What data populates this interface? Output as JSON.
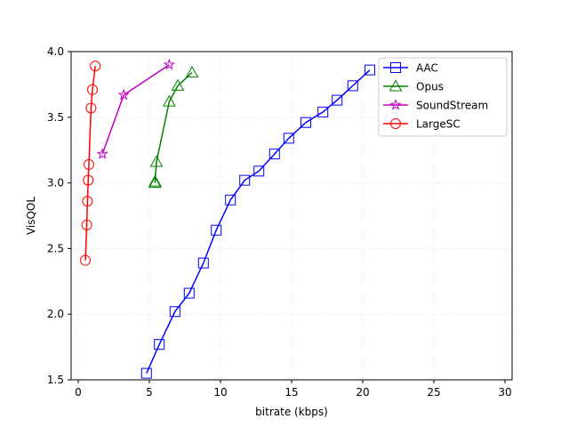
{
  "chart_data": {
    "type": "line",
    "title": "",
    "xlabel": "bitrate (kbps)",
    "ylabel": "VisQOL",
    "xlim": [
      -0.5,
      30.5
    ],
    "ylim": [
      1.5,
      4.0
    ],
    "xticks": [
      0,
      5,
      10,
      15,
      20,
      25,
      30
    ],
    "yticks": [
      1.5,
      2.0,
      2.5,
      3.0,
      3.5,
      4.0
    ],
    "xtick_labels": [
      "0",
      "5",
      "10",
      "15",
      "20",
      "25",
      "30"
    ],
    "ytick_labels": [
      "1.5",
      "2.0",
      "2.5",
      "3.0",
      "3.5",
      "4.0"
    ],
    "grid": true,
    "legend_position": "top-right",
    "series": [
      {
        "name": "AAC",
        "color": "#0000ff",
        "marker": "square",
        "x": [
          4.8,
          5.7,
          6.8,
          7.8,
          8.8,
          9.7,
          10.7,
          11.7,
          12.7,
          13.8,
          14.8,
          16.0,
          17.2,
          18.2,
          19.3,
          20.5
        ],
        "y": [
          1.55,
          1.77,
          2.02,
          2.16,
          2.39,
          2.64,
          2.87,
          3.02,
          3.09,
          3.22,
          3.34,
          3.46,
          3.54,
          3.63,
          3.74,
          3.86
        ]
      },
      {
        "name": "Opus",
        "color": "#008000",
        "marker": "triangle",
        "x": [
          5.4,
          5.4,
          5.5,
          6.4,
          7.0,
          8.0
        ],
        "y": [
          3.0,
          3.01,
          3.16,
          3.62,
          3.74,
          3.84
        ]
      },
      {
        "name": "SoundStream",
        "color": "#bf00bf",
        "marker": "star",
        "x": [
          1.7,
          3.2,
          6.4
        ],
        "y": [
          3.22,
          3.67,
          3.9
        ]
      },
      {
        "name": "LargeSC",
        "color": "#ff0000",
        "marker": "circle",
        "x": [
          0.5,
          0.6,
          0.65,
          0.7,
          0.75,
          0.9,
          1.0,
          1.2
        ],
        "y": [
          2.41,
          2.68,
          2.86,
          3.02,
          3.14,
          3.57,
          3.71,
          3.89
        ]
      }
    ]
  }
}
